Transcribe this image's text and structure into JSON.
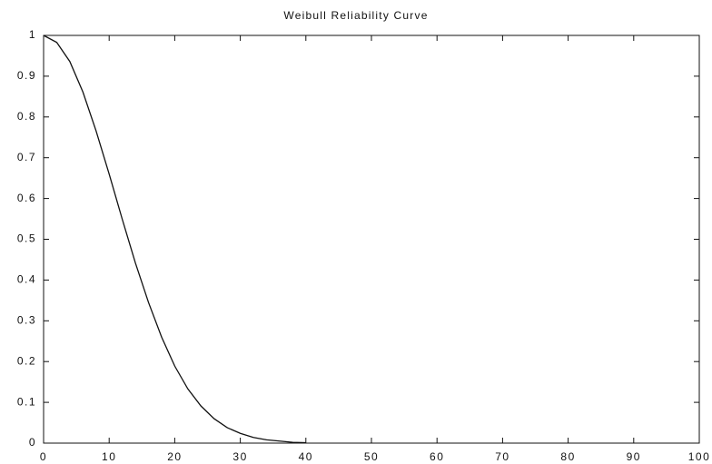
{
  "chart_data": {
    "type": "line",
    "title": "Weibull Reliability Curve",
    "x": [
      0,
      2,
      4,
      6,
      8,
      10,
      12,
      14,
      16,
      18,
      20,
      22,
      24,
      26,
      28,
      30,
      32,
      34,
      36,
      38,
      40
    ],
    "series": [
      {
        "color": "#111111",
        "values": [
          1,
          0.983,
          0.936,
          0.861,
          0.766,
          0.66,
          0.549,
          0.442,
          0.345,
          0.26,
          0.189,
          0.133,
          0.091,
          0.06,
          0.038,
          0.024,
          0.014,
          0.008,
          0.005,
          0.002,
          0.001
        ]
      }
    ],
    "xlim": [
      0,
      100
    ],
    "xticks": [
      0,
      10,
      20,
      30,
      40,
      50,
      60,
      70,
      80,
      90,
      100
    ],
    "ylim": [
      0,
      1
    ],
    "yticks": [
      0,
      0.1,
      0.2,
      0.3,
      0.4,
      0.5,
      0.6,
      0.7,
      0.8,
      0.9,
      1
    ],
    "grid": false
  }
}
